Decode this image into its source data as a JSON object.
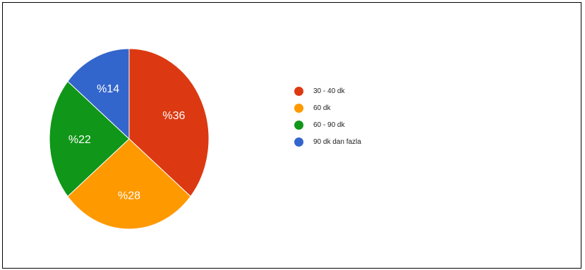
{
  "chart_data": {
    "type": "pie",
    "slices": [
      {
        "label": "30 - 40 dk",
        "value": 36,
        "value_label": "%36",
        "color": "#dc3912"
      },
      {
        "label": "60 dk",
        "value": 28,
        "value_label": "%28",
        "color": "#ff9900"
      },
      {
        "label": "60 - 90 dk",
        "value": 22,
        "value_label": "%22",
        "color": "#109618"
      },
      {
        "label": "90 dk dan fazla",
        "value": 14,
        "value_label": "%14",
        "color": "#3366cc"
      }
    ],
    "legend_position": "right",
    "start_angle": "top, clockwise"
  }
}
